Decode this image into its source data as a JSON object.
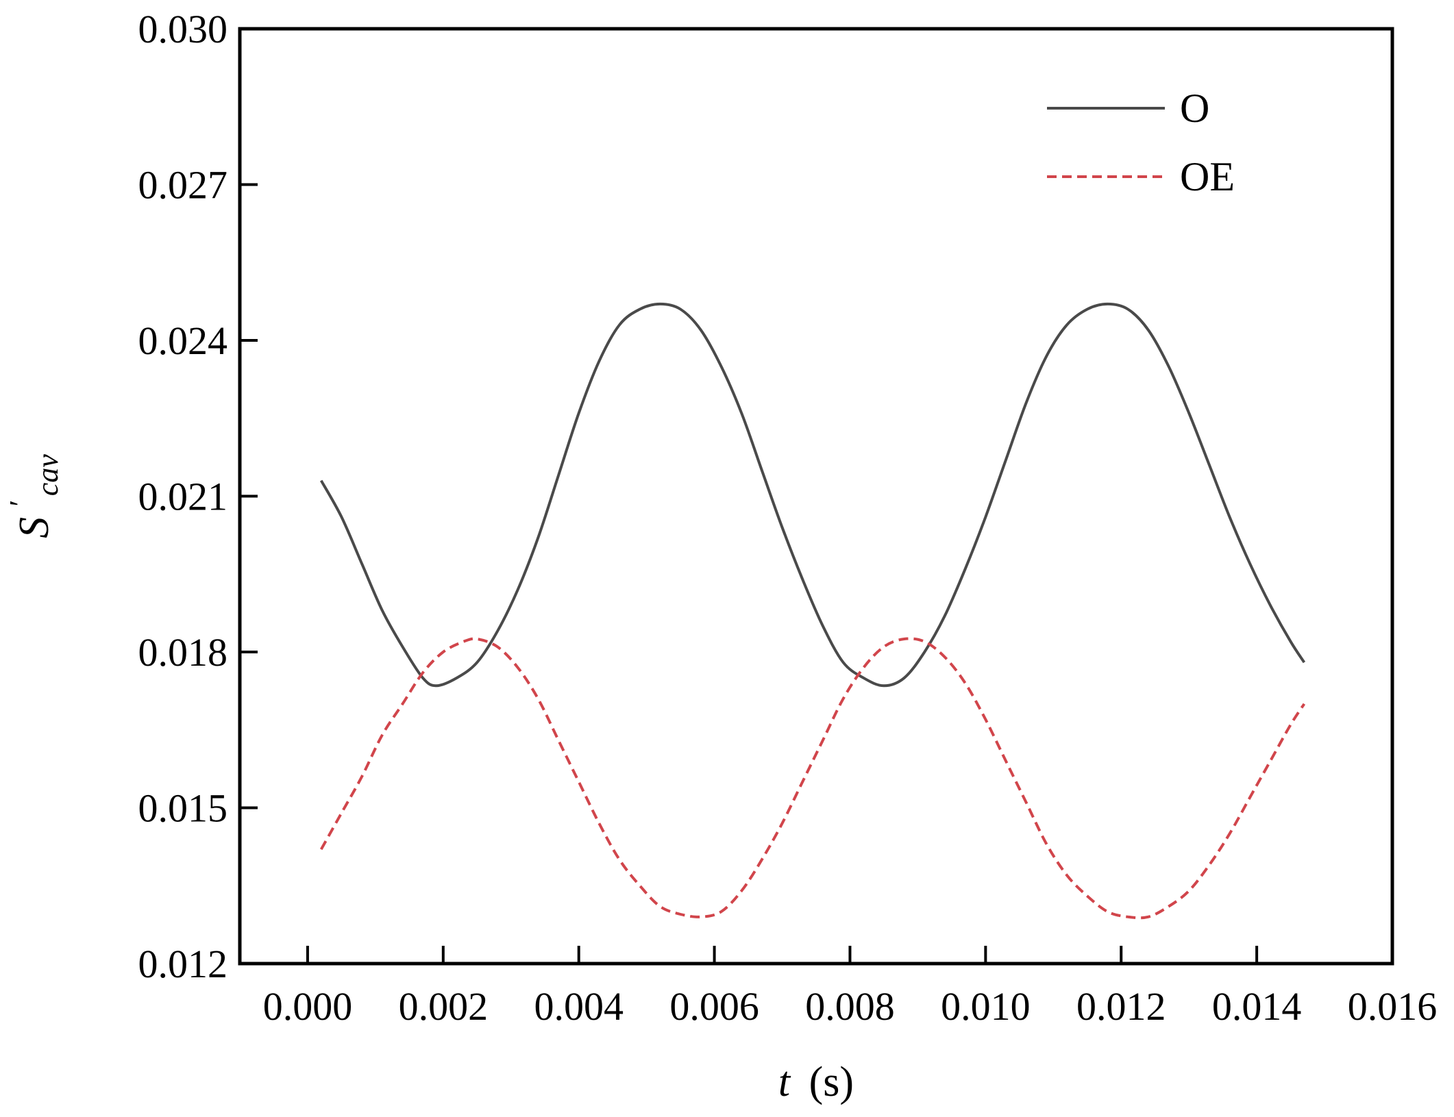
{
  "chart_data": {
    "type": "line",
    "title": "",
    "xlabel": {
      "main": "t",
      "unit": "(s)"
    },
    "ylabel": {
      "main": "S",
      "prime": "′",
      "sub": "cav"
    },
    "xlim": [
      -0.001,
      0.016
    ],
    "ylim": [
      0.012,
      0.03
    ],
    "xticks": [
      "0.000",
      "0.002",
      "0.004",
      "0.006",
      "0.008",
      "0.010",
      "0.012",
      "0.014",
      "0.016"
    ],
    "yticks": [
      "0.012",
      "0.015",
      "0.018",
      "0.021",
      "0.024",
      "0.027",
      "0.030"
    ],
    "grid": false,
    "legend_position": "top-right",
    "series": [
      {
        "name": "O",
        "color": "#4a4a4a",
        "style": "solid",
        "x": [
          0.0002,
          0.0005,
          0.0008,
          0.0011,
          0.0014,
          0.0017,
          0.0019,
          0.0022,
          0.0025,
          0.0028,
          0.0031,
          0.0034,
          0.0037,
          0.004,
          0.0043,
          0.0046,
          0.0049,
          0.0052,
          0.0055,
          0.0058,
          0.0061,
          0.0064,
          0.0067,
          0.007,
          0.0073,
          0.0076,
          0.0079,
          0.0082,
          0.0085,
          0.0088,
          0.0091,
          0.0094,
          0.0097,
          0.01,
          0.0103,
          0.0106,
          0.0109,
          0.0112,
          0.0115,
          0.0118,
          0.0121,
          0.0124,
          0.0127,
          0.013,
          0.0133,
          0.0136,
          0.0139,
          0.0142,
          0.0145,
          0.0147
        ],
        "y": [
          0.0213,
          0.0206,
          0.0197,
          0.0188,
          0.0181,
          0.0175,
          0.01735,
          0.0175,
          0.0178,
          0.0184,
          0.0192,
          0.0202,
          0.0214,
          0.0226,
          0.0236,
          0.0243,
          0.0246,
          0.0247,
          0.0246,
          0.0242,
          0.0235,
          0.0226,
          0.0215,
          0.0204,
          0.0194,
          0.0185,
          0.0178,
          0.0175,
          0.01735,
          0.0175,
          0.018,
          0.0187,
          0.0196,
          0.0206,
          0.0217,
          0.0228,
          0.0237,
          0.0243,
          0.0246,
          0.0247,
          0.0246,
          0.0242,
          0.0235,
          0.0226,
          0.0216,
          0.0206,
          0.0197,
          0.0189,
          0.0182,
          0.0178
        ]
      },
      {
        "name": "OE",
        "color": "#d1454b",
        "style": "dashed",
        "x": [
          0.0002,
          0.0005,
          0.0008,
          0.0011,
          0.0014,
          0.0017,
          0.002,
          0.0023,
          0.0025,
          0.0028,
          0.0031,
          0.0034,
          0.0037,
          0.004,
          0.0043,
          0.0046,
          0.0049,
          0.0052,
          0.0055,
          0.0058,
          0.0061,
          0.0064,
          0.0067,
          0.007,
          0.0073,
          0.0076,
          0.0079,
          0.0082,
          0.0085,
          0.0088,
          0.0091,
          0.0094,
          0.0097,
          0.01,
          0.0103,
          0.0106,
          0.0109,
          0.0112,
          0.0115,
          0.0118,
          0.0121,
          0.0124,
          0.0127,
          0.013,
          0.0133,
          0.0136,
          0.0139,
          0.0142,
          0.0145,
          0.0147
        ],
        "y": [
          0.0142,
          0.0149,
          0.0156,
          0.0164,
          0.017,
          0.0176,
          0.018,
          0.0182,
          0.01825,
          0.0181,
          0.0177,
          0.0171,
          0.0163,
          0.0155,
          0.0147,
          0.014,
          0.0135,
          0.0131,
          0.01295,
          0.0129,
          0.013,
          0.0134,
          0.014,
          0.0147,
          0.0155,
          0.0163,
          0.0171,
          0.0177,
          0.0181,
          0.01825,
          0.0182,
          0.0179,
          0.0174,
          0.0167,
          0.0159,
          0.0151,
          0.0143,
          0.0137,
          0.0133,
          0.013,
          0.0129,
          0.0129,
          0.0131,
          0.0134,
          0.0139,
          0.0145,
          0.0152,
          0.0159,
          0.0166,
          0.017
        ]
      }
    ]
  }
}
